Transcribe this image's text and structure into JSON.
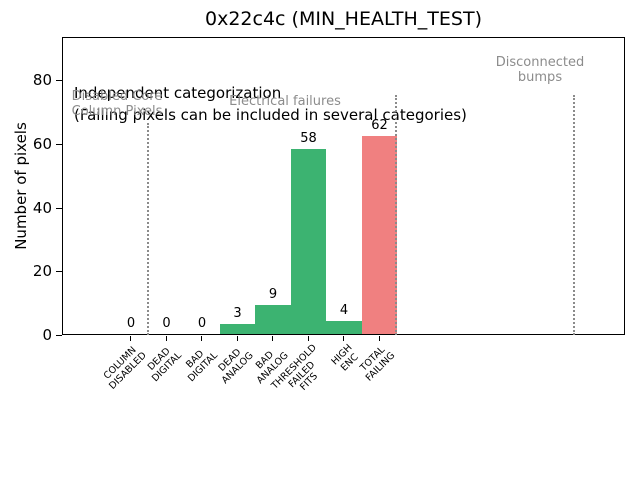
{
  "figure": {
    "title": "0x22c4c (MIN_HEALTH_TEST)"
  },
  "chart_data": {
    "type": "bar",
    "title": "0x22c4c (MIN_HEALTH_TEST)",
    "xlabel": "",
    "ylabel": "Number of pixels",
    "ylim": [
      0,
      93
    ],
    "yticks": [
      0,
      20,
      40,
      60,
      80
    ],
    "grid": false,
    "legend": null,
    "categories": [
      "COLUMN\nDISABLED",
      "DEAD\nDIGITAL",
      "BAD\nDIGITAL",
      "DEAD\nANALOG",
      "BAD\nANALOG",
      "THRESHOLD\nFAILED\nFITS",
      "HIGH\nENC",
      "TOTAL\nFAILING"
    ],
    "values": [
      0,
      0,
      0,
      3,
      9,
      58,
      4,
      62
    ],
    "bar_value_labels": [
      "0",
      "0",
      "0",
      "3",
      "9",
      "58",
      "4",
      "62"
    ],
    "bar_colors": [
      "#3cb371",
      "#3cb371",
      "#3cb371",
      "#3cb371",
      "#3cb371",
      "#3cb371",
      "#3cb371",
      "#f08080"
    ],
    "annotation": {
      "line1": "Independent categorization",
      "line2": "(Failing pixels can be included in several categories)"
    },
    "regions": [
      {
        "label": "Disabled Core\nColumn Pixels"
      },
      {
        "label": "Electrical failures"
      },
      {
        "label": "Disconnected\nbumps"
      }
    ],
    "separator_positions": [
      0.5,
      7.5,
      12.5
    ],
    "colors": {
      "pass_green": "#3cb371",
      "fail_red": "#f08080",
      "region_gray": "#8c8c8c",
      "separator_gray": "#8b8b8b"
    }
  }
}
